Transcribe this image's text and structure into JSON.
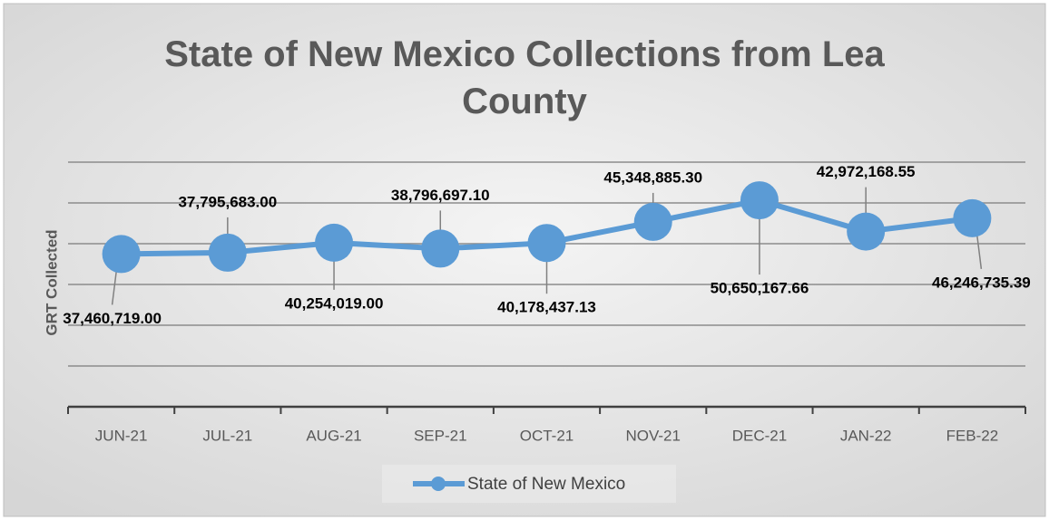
{
  "chart_data": {
    "type": "line",
    "title": "State of New Mexico Collections from Lea County",
    "y_label": "GRT Collected",
    "categories": [
      "JUN-21",
      "JUL-21",
      "AUG-21",
      "SEP-21",
      "OCT-21",
      "NOV-21",
      "DEC-21",
      "JAN-22",
      "FEB-22"
    ],
    "series": [
      {
        "name": "State of New Mexico",
        "color": "#5b9bd5",
        "values": [
          37460719.0,
          37795683.0,
          40254019.0,
          38796697.1,
          40178437.13,
          45348885.3,
          50650167.66,
          42972168.55,
          46246735.39
        ],
        "value_labels": [
          "37,460,719.00",
          "37,795,683.00",
          "40,254,019.00",
          "38,796,697.10",
          "40,178,437.13",
          "45,348,885.30",
          "50,650,167.66",
          "42,972,168.55",
          "46,246,735.39"
        ]
      }
    ],
    "ylim": [
      0,
      60000000
    ],
    "yticks": [
      0,
      10000000,
      20000000,
      30000000,
      40000000,
      50000000,
      60000000
    ],
    "grid": true,
    "legend": "bottom"
  }
}
